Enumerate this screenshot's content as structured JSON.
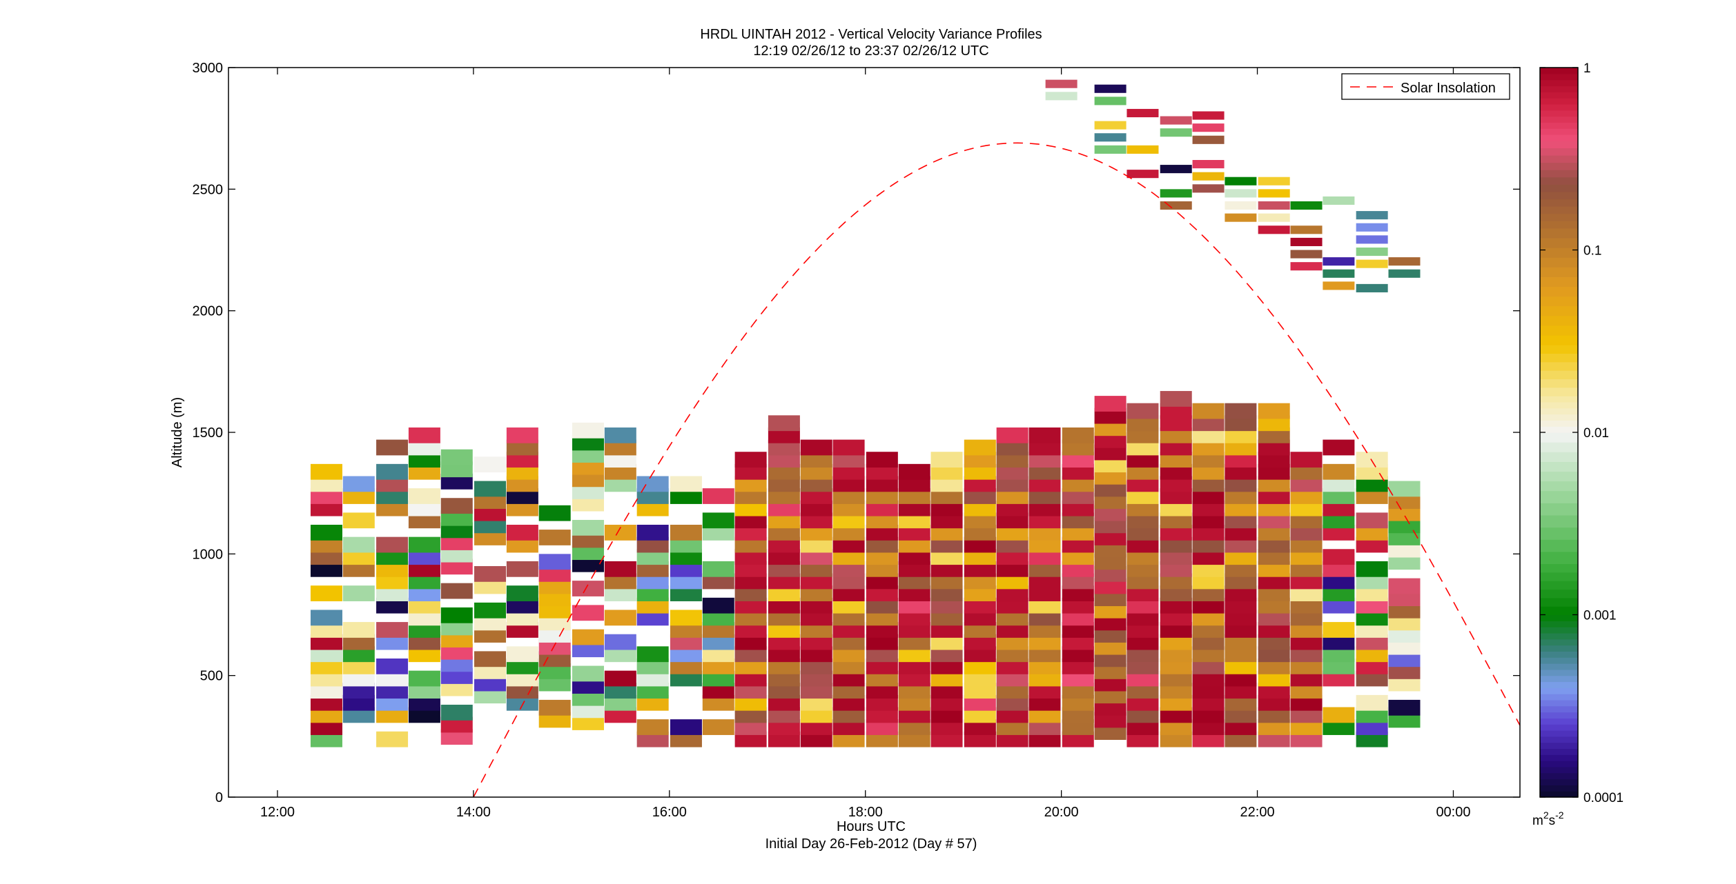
{
  "chart_data": {
    "type": "heatmap",
    "title": "HRDL UINTAH 2012 - Vertical Velocity Variance Profiles",
    "subtitle": "12:19 02/26/12 to 23:37 02/26/12  UTC",
    "xlabel": "Hours UTC",
    "xlabel2": "Initial Day 26-Feb-2012 (Day # 57)",
    "ylabel": "Altitude (m)",
    "x_tick_labels": [
      "12:00",
      "14:00",
      "16:00",
      "18:00",
      "20:00",
      "22:00",
      "00:00"
    ],
    "x_tick_hours": [
      12,
      14,
      16,
      18,
      20,
      22,
      24
    ],
    "xlim_hours": [
      11.5,
      24.68
    ],
    "y_tick_labels": [
      "0",
      "500",
      "1000",
      "1500",
      "2000",
      "2500",
      "3000"
    ],
    "y_ticks": [
      0,
      500,
      1000,
      1500,
      2000,
      2500,
      3000
    ],
    "ylim": [
      0,
      3000
    ],
    "colorbar": {
      "scale": "log",
      "range": [
        0.0001,
        1
      ],
      "tick_labels": [
        "1",
        "0.1",
        "0.01",
        "0.001",
        "0.0001"
      ],
      "tick_values": [
        1,
        0.1,
        0.01,
        0.001,
        0.0001
      ],
      "unit_base": "m",
      "unit_sup1": "2",
      "unit_mid": "s",
      "unit_sup2": "-2"
    },
    "legend": {
      "label": "Solar Insolation",
      "placement": "top-right",
      "color": "#ff0000"
    },
    "solar_insolation": {
      "start_hour": 14.0,
      "peak_hour": 19.55,
      "peak_altitude": 2690,
      "end_hour": 24.68,
      "end_altitude": 295
    },
    "profile_times_hours": [
      12.5,
      12.83,
      13.17,
      13.5,
      13.83,
      14.17,
      14.5,
      14.83,
      15.17,
      15.5,
      15.83,
      16.17,
      16.5,
      16.83,
      17.17,
      17.5,
      17.83,
      18.17,
      18.5,
      18.83,
      19.17,
      19.5,
      19.83,
      20.17,
      20.5,
      20.83,
      21.17,
      21.5,
      21.83,
      22.17,
      22.5,
      22.83,
      23.17,
      23.5
    ],
    "profile_tops_m": [
      1360,
      1330,
      1450,
      1540,
      1450,
      1380,
      1490,
      1190,
      1510,
      1510,
      1280,
      1300,
      1250,
      1390,
      1530,
      1450,
      1470,
      1400,
      1350,
      1410,
      1450,
      1490,
      1490,
      1490,
      1650,
      1610,
      1650,
      1610,
      1620,
      1590,
      1390,
      1430,
      1410,
      1310
    ],
    "profile_bottoms_m": [
      220,
      220,
      220,
      220,
      230,
      350,
      220,
      300,
      290,
      270,
      220,
      220,
      220,
      220,
      220,
      220,
      220,
      220,
      220,
      220,
      220,
      220,
      220,
      220,
      250,
      220,
      220,
      220,
      220,
      220,
      220,
      220,
      220,
      250
    ],
    "upper_profiles": [
      {
        "hour": 20.0,
        "bottom_m": 2850,
        "top_m": 3000
      },
      {
        "hour": 20.5,
        "bottom_m": 2630,
        "top_m": 3000
      },
      {
        "hour": 20.83,
        "bottom_m": 2530,
        "top_m": 2800
      },
      {
        "hour": 21.17,
        "bottom_m": 2400,
        "top_m": 2800
      },
      {
        "hour": 21.5,
        "bottom_m": 2420,
        "top_m": 2790
      },
      {
        "hour": 21.83,
        "bottom_m": 2300,
        "top_m": 2540
      },
      {
        "hour": 22.17,
        "bottom_m": 2300,
        "top_m": 2540
      },
      {
        "hour": 22.5,
        "bottom_m": 2150,
        "top_m": 2480
      },
      {
        "hour": 22.83,
        "bottom_m": 2070,
        "top_m": 2430
      },
      {
        "hour": 23.17,
        "bottom_m": 2060,
        "top_m": 2410
      },
      {
        "hour": 23.5,
        "bottom_m": 2070,
        "top_m": 2210
      }
    ],
    "grid": false
  }
}
